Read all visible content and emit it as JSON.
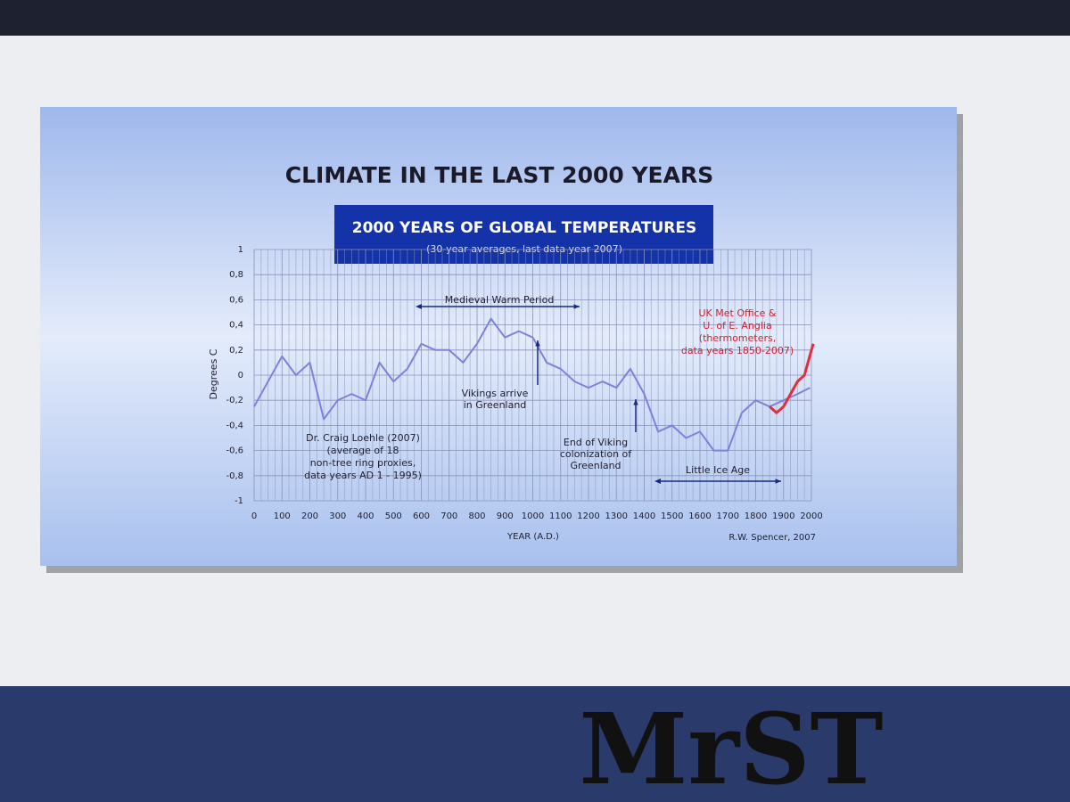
{
  "chart_data": {
    "type": "line",
    "title": "CLIMATE IN THE LAST 2000 YEARS",
    "subtitle": "2000 YEARS OF GLOBAL TEMPERATURES",
    "subtitle_note": "(30-year averages, last data year 2007)",
    "y_label": "Degrees C",
    "x_label": "YEAR (A.D.)",
    "source": "R.W. Spencer, 2007",
    "xlim": [
      0,
      2000
    ],
    "xticks": [
      0,
      100,
      200,
      300,
      400,
      500,
      600,
      700,
      800,
      900,
      1000,
      1100,
      1200,
      1300,
      1400,
      1500,
      1600,
      1700,
      1800,
      1900,
      2000
    ],
    "ylim": [
      -1,
      1
    ],
    "yticks": [
      -1,
      {
        "value": -0.8,
        "label": "-0,8"
      },
      {
        "value": -0.6,
        "label": "-0,6"
      },
      {
        "value": -0.4,
        "label": "-0,4"
      },
      {
        "value": -0.2,
        "label": "-0,2"
      },
      0,
      {
        "value": 0.2,
        "label": "0,2"
      },
      {
        "value": 0.4,
        "label": "0,4"
      },
      {
        "value": 0.6,
        "label": "0,6"
      },
      {
        "value": 0.8,
        "label": "0,8"
      },
      1
    ],
    "grid": true,
    "series": [
      {
        "label_lines": [
          "Dr. Craig Loehle (2007)",
          "(average of 18",
          "non-tree ring proxies,",
          "data years AD 1 - 1995)"
        ],
        "color": "#8080dd",
        "x": [
          0,
          50,
          100,
          150,
          200,
          250,
          300,
          350,
          400,
          450,
          500,
          550,
          600,
          650,
          700,
          750,
          800,
          850,
          900,
          950,
          1000,
          1050,
          1100,
          1150,
          1200,
          1250,
          1300,
          1350,
          1400,
          1450,
          1500,
          1550,
          1600,
          1650,
          1700,
          1750,
          1800,
          1850,
          1900,
          1950,
          1995
        ],
        "values": [
          -0.25,
          -0.05,
          0.15,
          0.0,
          0.1,
          -0.35,
          -0.2,
          -0.15,
          -0.2,
          0.1,
          -0.05,
          0.05,
          0.25,
          0.2,
          0.2,
          0.1,
          0.25,
          0.45,
          0.3,
          0.35,
          0.3,
          0.1,
          0.05,
          -0.05,
          -0.1,
          -0.05,
          -0.1,
          0.05,
          -0.15,
          -0.45,
          -0.4,
          -0.5,
          -0.45,
          -0.6,
          -0.6,
          -0.3,
          -0.2,
          -0.25,
          -0.2,
          -0.15,
          -0.1
        ]
      },
      {
        "label_lines": [
          "UK Met Office &",
          "U. of E. Anglia",
          "(thermometers,",
          "data years 1850-2007)"
        ],
        "color": "#e03040",
        "x": [
          1850,
          1875,
          1900,
          1925,
          1950,
          1975,
          2000,
          2007
        ],
        "values": [
          -0.25,
          -0.3,
          -0.25,
          -0.15,
          -0.05,
          0.0,
          0.2,
          0.25
        ]
      }
    ],
    "annotations": [
      [
        "Medieval Warm Period"
      ],
      [
        "Vikings arrive",
        "in Greenland"
      ],
      [
        "End of Viking",
        "colonization of",
        "Greenland"
      ],
      [
        "Little Ice Age"
      ]
    ]
  },
  "venue_logo": "MrST"
}
